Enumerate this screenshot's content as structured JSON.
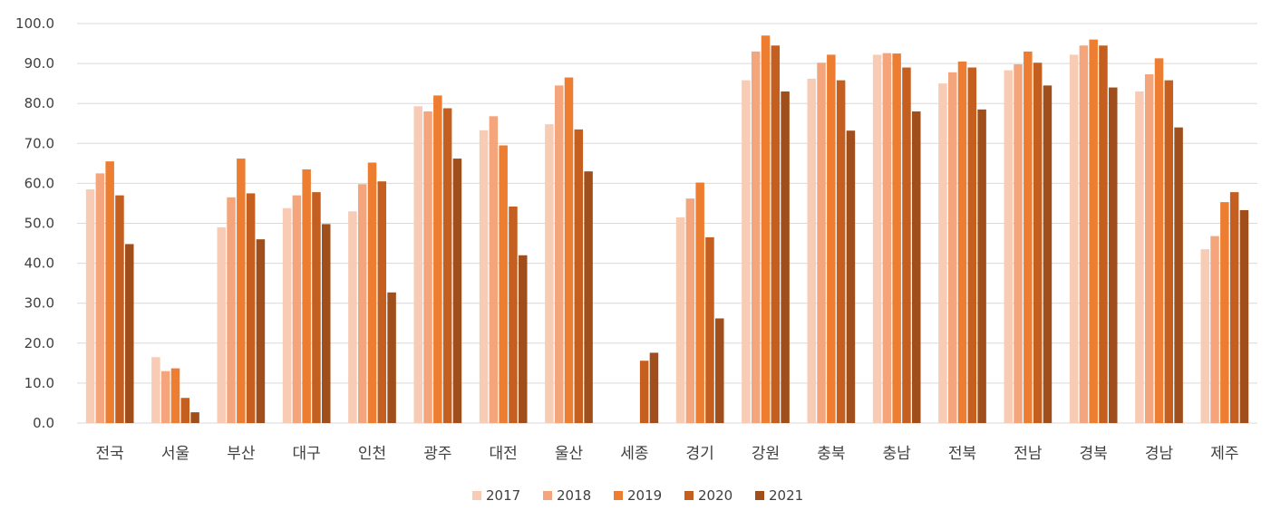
{
  "chart_data": {
    "type": "bar",
    "title": "",
    "xlabel": "",
    "ylabel": "",
    "ylim": [
      0,
      100
    ],
    "yticks": [
      "0.0",
      "10.0",
      "20.0",
      "30.0",
      "40.0",
      "50.0",
      "60.0",
      "70.0",
      "80.0",
      "90.0",
      "100.0"
    ],
    "grid": true,
    "legend_position": "bottom",
    "categories": [
      "전국",
      "서울",
      "부산",
      "대구",
      "인천",
      "광주",
      "대전",
      "울산",
      "세종",
      "경기",
      "강원",
      "충북",
      "충남",
      "전북",
      "전남",
      "경북",
      "경남",
      "제주"
    ],
    "series": [
      {
        "name": "2017",
        "color": "#f8cbb4",
        "values": [
          58.5,
          16.5,
          49.0,
          53.8,
          53.0,
          79.3,
          73.3,
          74.8,
          null,
          51.5,
          85.8,
          86.2,
          92.2,
          85.0,
          88.3,
          92.2,
          83.0,
          43.5
        ]
      },
      {
        "name": "2018",
        "color": "#f4a57c",
        "values": [
          62.5,
          13.0,
          56.5,
          57.0,
          59.8,
          78.0,
          76.8,
          84.5,
          null,
          56.2,
          93.0,
          90.2,
          92.6,
          87.8,
          89.8,
          94.5,
          87.3,
          46.8
        ]
      },
      {
        "name": "2019",
        "color": "#ed7d31",
        "values": [
          65.5,
          13.7,
          66.2,
          63.5,
          65.2,
          82.0,
          69.5,
          86.5,
          null,
          60.2,
          97.0,
          92.2,
          92.5,
          90.5,
          93.0,
          96.0,
          91.3,
          55.3
        ]
      },
      {
        "name": "2020",
        "color": "#c55f1f",
        "values": [
          57.0,
          6.3,
          57.5,
          57.8,
          60.5,
          78.8,
          54.2,
          73.5,
          15.6,
          46.5,
          94.5,
          85.8,
          89.0,
          89.0,
          90.2,
          94.5,
          85.8,
          57.8
        ]
      },
      {
        "name": "2021",
        "color": "#a04f1c",
        "values": [
          44.8,
          2.7,
          46.0,
          49.8,
          32.7,
          66.2,
          42.0,
          63.0,
          17.6,
          26.2,
          83.0,
          73.2,
          78.0,
          78.5,
          84.5,
          84.0,
          74.0,
          53.3
        ]
      }
    ]
  }
}
